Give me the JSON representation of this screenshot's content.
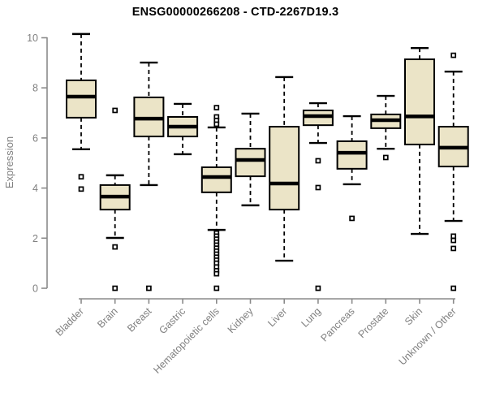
{
  "chart_data": {
    "type": "boxplot",
    "title": "ENSG00000266208 - CTD-2267D19.3",
    "ylabel": "Expression",
    "xlabel": "",
    "ylim": [
      0,
      10
    ],
    "yticks": [
      0,
      2,
      4,
      6,
      8,
      10
    ],
    "grid": false,
    "legend": false,
    "categories": [
      "Bladder",
      "Brain",
      "Breast",
      "Gastric",
      "Hematopoietic cells",
      "Kidney",
      "Liver",
      "Lung",
      "Pancreas",
      "Prostate",
      "Skin",
      "Unknown / Other"
    ],
    "boxes": [
      {
        "label": "Bladder",
        "low": 5.55,
        "q1": 6.81,
        "median": 7.65,
        "q3": 8.3,
        "high": 10.15,
        "outliers": [
          4.45,
          3.96
        ]
      },
      {
        "label": "Brain",
        "low": 2.01,
        "q1": 3.14,
        "median": 3.66,
        "q3": 4.12,
        "high": 4.51,
        "outliers": [
          7.1,
          1.65,
          0
        ]
      },
      {
        "label": "Breast",
        "low": 4.12,
        "q1": 6.06,
        "median": 6.77,
        "q3": 7.62,
        "high": 9.01,
        "outliers": [
          0
        ]
      },
      {
        "label": "Gastric",
        "low": 5.35,
        "q1": 6.06,
        "median": 6.45,
        "q3": 6.84,
        "high": 7.36,
        "outliers": []
      },
      {
        "label": "Hematopoietic cells",
        "low": 2.33,
        "q1": 3.83,
        "median": 4.44,
        "q3": 4.83,
        "high": 6.42,
        "outliers": [
          7.21,
          6.84,
          6.7,
          6.55,
          2.2,
          2.08,
          1.96,
          1.84,
          1.72,
          1.6,
          1.48,
          1.36,
          1.24,
          1.12,
          1.0,
          0.85,
          0.7,
          0.58,
          0
        ]
      },
      {
        "label": "Kidney",
        "low": 3.31,
        "q1": 4.47,
        "median": 5.12,
        "q3": 5.57,
        "high": 6.97,
        "outliers": []
      },
      {
        "label": "Liver",
        "low": 1.1,
        "q1": 3.14,
        "median": 4.18,
        "q3": 6.45,
        "high": 8.43,
        "outliers": []
      },
      {
        "label": "Lung",
        "low": 5.8,
        "q1": 6.51,
        "median": 6.87,
        "q3": 7.1,
        "high": 7.39,
        "outliers": [
          5.09,
          4.02,
          0
        ]
      },
      {
        "label": "Pancreas",
        "low": 4.15,
        "q1": 4.77,
        "median": 5.41,
        "q3": 5.87,
        "high": 6.87,
        "outliers": [
          2.79
        ]
      },
      {
        "label": "Prostate",
        "low": 5.57,
        "q1": 6.39,
        "median": 6.71,
        "q3": 6.94,
        "high": 7.68,
        "outliers": [
          5.22
        ]
      },
      {
        "label": "Skin",
        "low": 2.17,
        "q1": 5.74,
        "median": 6.86,
        "q3": 9.14,
        "high": 9.59,
        "outliers": []
      },
      {
        "label": "Unknown / Other",
        "low": 2.69,
        "q1": 4.86,
        "median": 5.61,
        "q3": 6.45,
        "high": 8.65,
        "outliers": [
          9.3,
          2.08,
          1.91,
          1.59,
          0
        ]
      }
    ]
  },
  "colors": {
    "box_fill": "#EBE4C7",
    "box_stroke": "#000000",
    "median": "#000000",
    "axis": "#8a8a8a",
    "tick_text": "#808080",
    "title_text": "#000000",
    "background": "#ffffff"
  }
}
